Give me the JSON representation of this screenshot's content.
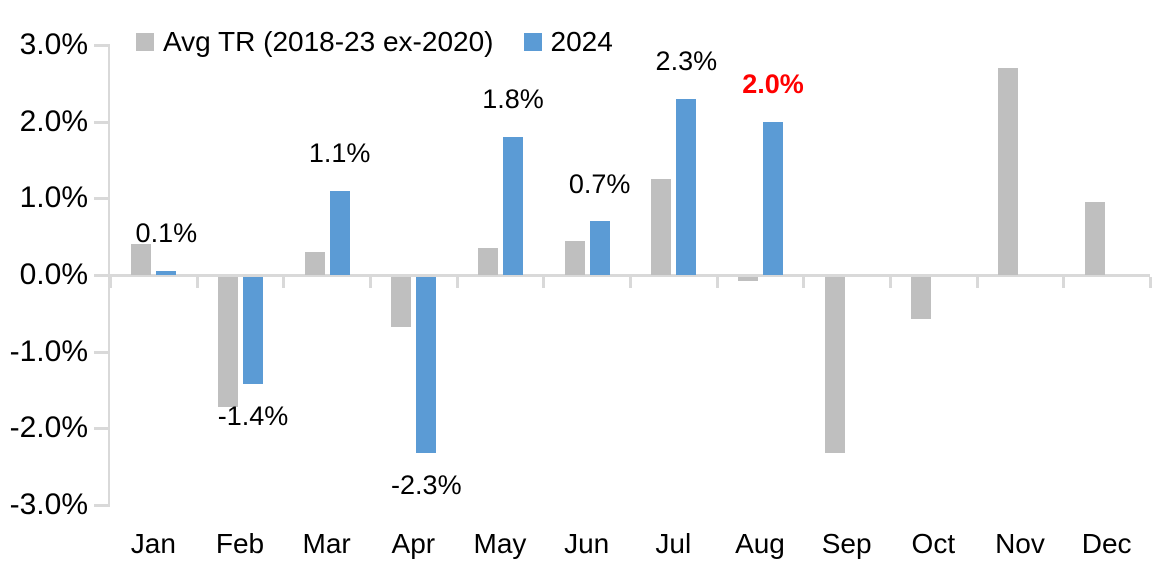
{
  "chart_data": {
    "type": "bar",
    "title": "",
    "xlabel": "",
    "ylabel": "",
    "categories": [
      "Jan",
      "Feb",
      "Mar",
      "Apr",
      "May",
      "Jun",
      "Jul",
      "Aug",
      "Sep",
      "Oct",
      "Nov",
      "Dec"
    ],
    "series": [
      {
        "name": "Avg TR (2018-23 ex-2020)",
        "color": "#BFBFBF",
        "values": [
          0.4,
          -1.7,
          0.3,
          -0.65,
          0.35,
          0.45,
          1.25,
          -0.05,
          -2.3,
          -0.55,
          2.7,
          0.95
        ]
      },
      {
        "name": "2024",
        "color": "#5B9BD5",
        "values": [
          0.05,
          -1.4,
          1.1,
          -2.3,
          1.8,
          0.7,
          2.3,
          2.0,
          null,
          null,
          null,
          null
        ],
        "data_labels": [
          {
            "text": "0.1%",
            "color": "#000000",
            "bold": false
          },
          {
            "text": "-1.4%",
            "color": "#000000",
            "bold": false
          },
          {
            "text": "1.1%",
            "color": "#000000",
            "bold": false
          },
          {
            "text": "-2.3%",
            "color": "#000000",
            "bold": false
          },
          {
            "text": "1.8%",
            "color": "#000000",
            "bold": false
          },
          {
            "text": "0.7%",
            "color": "#000000",
            "bold": false
          },
          {
            "text": "2.3%",
            "color": "#000000",
            "bold": false
          },
          {
            "text": "2.0%",
            "color": "#FF0000",
            "bold": true
          },
          null,
          null,
          null,
          null
        ]
      }
    ],
    "ylim": [
      -3,
      3
    ],
    "yticks": [
      {
        "label": "3.0%",
        "value": 3
      },
      {
        "label": "2.0%",
        "value": 2
      },
      {
        "label": "1.0%",
        "value": 1
      },
      {
        "label": "0.0%",
        "value": 0
      },
      {
        "label": "-1.0%",
        "value": -1
      },
      {
        "label": "-2.0%",
        "value": -2
      },
      {
        "label": "-3.0%",
        "value": -3
      }
    ],
    "grid": false,
    "legend_position": "top-left",
    "axis_color": "#D9D9D9",
    "highlight_note": {
      "category": "Aug",
      "series": "2024",
      "label": "2.0%",
      "color": "#FF0000"
    }
  },
  "legend": {
    "items": [
      {
        "label": "Avg TR (2018-23 ex-2020)",
        "color": "#BFBFBF"
      },
      {
        "label": "2024",
        "color": "#5B9BD5"
      }
    ]
  }
}
